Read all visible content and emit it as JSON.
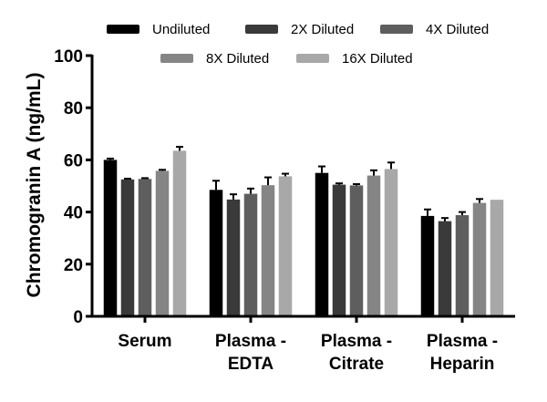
{
  "chart_data": {
    "type": "bar",
    "title": "",
    "xlabel": "",
    "ylabel": "Chromogranin A (ng/mL)",
    "ylim": [
      0,
      100
    ],
    "yticks": [
      "0",
      "20",
      "40",
      "60",
      "80",
      "100"
    ],
    "grid": false,
    "legend_position": "top",
    "categories": [
      [
        "Serum"
      ],
      [
        "Plasma -",
        "EDTA"
      ],
      [
        "Plasma -",
        "Citrate"
      ],
      [
        "Plasma -",
        "Heparin"
      ]
    ],
    "series": [
      {
        "name": "Undiluted",
        "color": "#000000",
        "values": [
          60,
          48.5,
          55,
          38.5
        ],
        "errors": [
          0.5,
          3.5,
          2.5,
          2.5
        ]
      },
      {
        "name": "2X Diluted",
        "color": "#3a3a3a",
        "values": [
          52.5,
          44.8,
          50.5,
          36.5
        ],
        "errors": [
          0.3,
          2.0,
          0.5,
          1.2
        ]
      },
      {
        "name": "4X Diluted",
        "color": "#5e5e5e",
        "values": [
          52.7,
          47,
          50.2,
          38.8
        ],
        "errors": [
          0.3,
          2.0,
          0.5,
          1.2
        ]
      },
      {
        "name": "8X Diluted",
        "color": "#858585",
        "values": [
          55.8,
          50.3,
          54,
          43.5
        ],
        "errors": [
          0.4,
          3.0,
          2.0,
          1.5
        ]
      },
      {
        "name": "16X Diluted",
        "color": "#a8a8a8",
        "values": [
          63.5,
          53.7,
          56.5,
          44.7
        ],
        "errors": [
          1.5,
          1.0,
          2.5,
          0
        ]
      }
    ]
  }
}
